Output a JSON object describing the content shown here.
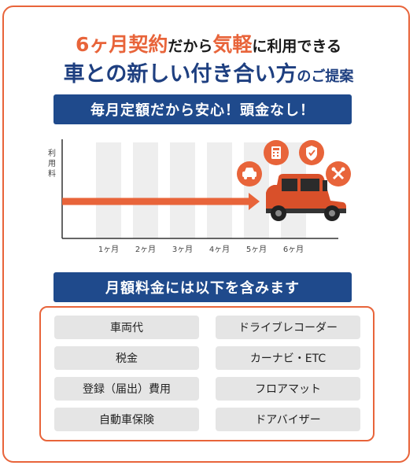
{
  "headline": {
    "line1_em": "6ヶ月契約",
    "line1_mid": "だから",
    "line1_em2": "気軽",
    "line1_tail": "に利用できる",
    "line2_main": "車との新しい付き合い方",
    "line2_tail": "のご提案"
  },
  "banner_top": "毎月定額だから安心！頭金なし！",
  "chart_data": {
    "type": "bar",
    "ylabel": "利用料",
    "categories": [
      "1ヶ月",
      "2ヶ月",
      "3ヶ月",
      "4ヶ月",
      "5ヶ月",
      "6ヶ月"
    ],
    "values": [
      1,
      1,
      1,
      1,
      1,
      1
    ],
    "grid": false,
    "colors": {
      "bar": "#eeeeee",
      "arrow": "#e8643a",
      "axis": "#333333",
      "car": "#d9502a"
    },
    "icons": [
      "car-icon",
      "calculator-icon",
      "shield-icon",
      "wrench-icon"
    ]
  },
  "banner_bottom": "月額料金には以下を含みます",
  "includes": [
    "車両代",
    "ドライブレコーダー",
    "税金",
    "カーナビ・ETC",
    "登録（届出）費用",
    "フロアマット",
    "自動車保険",
    "ドアバイザー"
  ],
  "colors": {
    "accent": "#e8643a",
    "navy": "#1f4a8c",
    "item_bg": "#e5e5e5"
  }
}
